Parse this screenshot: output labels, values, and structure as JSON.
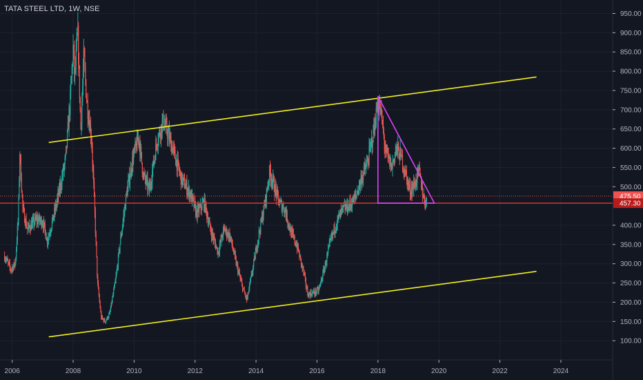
{
  "header": {
    "title": "TATA STEEL LTD, 1W, NSE"
  },
  "colors": {
    "background": "#131722",
    "grid": "#1e222d",
    "axis_text": "#b2b5be",
    "candle_up": "#26a69a",
    "candle_down": "#ef5350",
    "channel": "#f5f01e",
    "triangle": "#e040fb",
    "support_line": "#d32f2f",
    "last_price_label": "#ef5350",
    "support_label": "#b71c1c"
  },
  "chart_data": {
    "type": "candlestick",
    "title": "TATA STEEL LTD, 1W, NSE",
    "xlabel": "",
    "ylabel": "",
    "xlim": [
      2005.6,
      2025.7
    ],
    "ylim": [
      50,
      985
    ],
    "grid": true,
    "x_ticks": [
      "2006",
      "2008",
      "2010",
      "2012",
      "2014",
      "2016",
      "2018",
      "2020",
      "2022",
      "2024"
    ],
    "x_tick_values": [
      2006,
      2008,
      2010,
      2012,
      2014,
      2016,
      2018,
      2020,
      2022,
      2024
    ],
    "y_ticks": [
      "950.00",
      "900.00",
      "850.00",
      "800.00",
      "750.00",
      "700.00",
      "650.00",
      "600.00",
      "550.00",
      "500.00",
      "400.00",
      "350.00",
      "300.00",
      "250.00",
      "200.00",
      "150.00",
      "100.00"
    ],
    "y_tick_values": [
      950,
      900,
      850,
      800,
      750,
      700,
      650,
      600,
      550,
      500,
      400,
      350,
      300,
      250,
      200,
      150,
      100
    ],
    "price_path": [
      [
        2005.75,
        320
      ],
      [
        2005.95,
        285
      ],
      [
        2006.1,
        300
      ],
      [
        2006.2,
        420
      ],
      [
        2006.25,
        590
      ],
      [
        2006.35,
        440
      ],
      [
        2006.5,
        390
      ],
      [
        2006.8,
        415
      ],
      [
        2007.0,
        410
      ],
      [
        2007.15,
        360
      ],
      [
        2007.35,
        420
      ],
      [
        2007.55,
        490
      ],
      [
        2007.75,
        570
      ],
      [
        2007.9,
        720
      ],
      [
        2008.0,
        860
      ],
      [
        2008.05,
        780
      ],
      [
        2008.15,
        900
      ],
      [
        2008.25,
        650
      ],
      [
        2008.35,
        840
      ],
      [
        2008.45,
        720
      ],
      [
        2008.6,
        630
      ],
      [
        2008.7,
        450
      ],
      [
        2008.8,
        250
      ],
      [
        2008.92,
        160
      ],
      [
        2009.05,
        150
      ],
      [
        2009.2,
        170
      ],
      [
        2009.4,
        260
      ],
      [
        2009.55,
        360
      ],
      [
        2009.75,
        480
      ],
      [
        2009.95,
        570
      ],
      [
        2010.15,
        630
      ],
      [
        2010.3,
        530
      ],
      [
        2010.5,
        490
      ],
      [
        2010.75,
        620
      ],
      [
        2010.95,
        670
      ],
      [
        2011.1,
        640
      ],
      [
        2011.3,
        590
      ],
      [
        2011.55,
        520
      ],
      [
        2011.85,
        480
      ],
      [
        2012.05,
        430
      ],
      [
        2012.3,
        460
      ],
      [
        2012.5,
        390
      ],
      [
        2012.75,
        330
      ],
      [
        2012.95,
        390
      ],
      [
        2013.15,
        370
      ],
      [
        2013.35,
        300
      ],
      [
        2013.55,
        240
      ],
      [
        2013.7,
        205
      ],
      [
        2013.9,
        290
      ],
      [
        2014.1,
        380
      ],
      [
        2014.3,
        460
      ],
      [
        2014.45,
        540
      ],
      [
        2014.6,
        500
      ],
      [
        2014.75,
        460
      ],
      [
        2014.95,
        440
      ],
      [
        2015.15,
        380
      ],
      [
        2015.35,
        345
      ],
      [
        2015.55,
        280
      ],
      [
        2015.7,
        220
      ],
      [
        2015.9,
        225
      ],
      [
        2016.05,
        230
      ],
      [
        2016.25,
        290
      ],
      [
        2016.45,
        360
      ],
      [
        2016.65,
        410
      ],
      [
        2016.85,
        440
      ],
      [
        2017.05,
        450
      ],
      [
        2017.25,
        470
      ],
      [
        2017.45,
        520
      ],
      [
        2017.65,
        560
      ],
      [
        2017.85,
        640
      ],
      [
        2018.0,
        720
      ],
      [
        2018.1,
        690
      ],
      [
        2018.25,
        590
      ],
      [
        2018.45,
        550
      ],
      [
        2018.6,
        600
      ],
      [
        2018.75,
        580
      ],
      [
        2018.95,
        520
      ],
      [
        2019.05,
        490
      ],
      [
        2019.2,
        505
      ],
      [
        2019.35,
        540
      ],
      [
        2019.5,
        470
      ],
      [
        2019.6,
        458
      ]
    ],
    "channel_upper": {
      "x": [
        2007.2,
        2023.2
      ],
      "y": [
        615,
        785
      ]
    },
    "channel_lower": {
      "x": [
        2007.2,
        2023.2
      ],
      "y": [
        110,
        280
      ]
    },
    "triangle": {
      "x": [
        2018.0,
        2018.0,
        2019.85
      ],
      "y": [
        735,
        457.3,
        457.3
      ]
    },
    "support_line": {
      "value": 457.3
    },
    "last_price_line": {
      "value": 475.5
    },
    "price_labels": [
      {
        "value": 475.5,
        "label": "475.50",
        "role": "last-price"
      },
      {
        "value": 457.3,
        "label": "457.30",
        "role": "support"
      }
    ]
  }
}
